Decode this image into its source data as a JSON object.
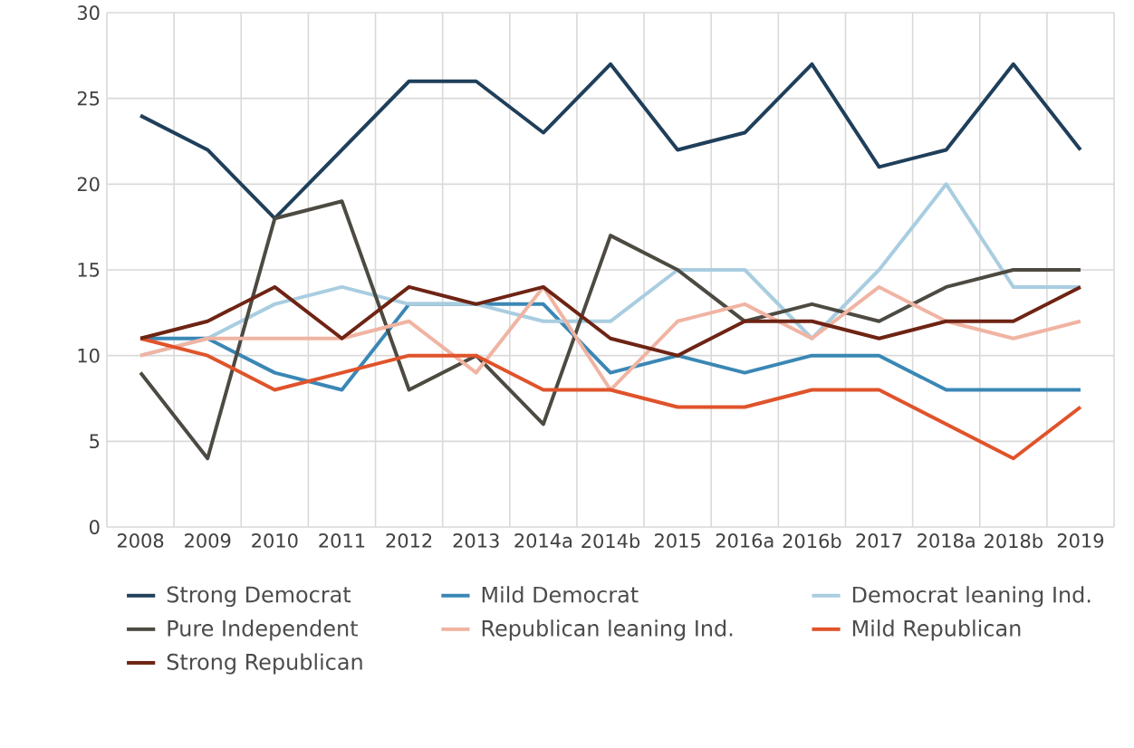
{
  "chart_data": {
    "type": "line",
    "categories": [
      "2008",
      "2009",
      "2010",
      "2011",
      "2012",
      "2013",
      "2014a",
      "2014b",
      "2015",
      "2016a",
      "2016b",
      "2017",
      "2018a",
      "2018b",
      "2019"
    ],
    "series": [
      {
        "name": "Strong Democrat",
        "color": "#1f3f5a",
        "values": [
          24,
          22,
          18,
          22,
          26,
          26,
          23,
          27,
          22,
          23,
          27,
          21,
          22,
          27,
          22
        ]
      },
      {
        "name": "Mild Democrat",
        "color": "#3a87b5",
        "values": [
          11,
          11,
          9,
          8,
          13,
          13,
          13,
          9,
          10,
          9,
          10,
          10,
          8,
          8,
          8
        ]
      },
      {
        "name": "Democrat leaning Ind.",
        "color": "#a9cde0",
        "values": [
          10,
          11,
          13,
          14,
          13,
          13,
          12,
          12,
          15,
          15,
          11,
          15,
          20,
          14,
          14
        ]
      },
      {
        "name": "Pure Independent",
        "color": "#4d4a42",
        "values": [
          9,
          4,
          18,
          19,
          8,
          10,
          6,
          17,
          15,
          12,
          13,
          12,
          14,
          15,
          15
        ]
      },
      {
        "name": "Republican leaning Ind.",
        "color": "#f0b4a3",
        "values": [
          10,
          11,
          11,
          11,
          12,
          9,
          14,
          8,
          12,
          13,
          11,
          14,
          12,
          11,
          12
        ]
      },
      {
        "name": "Mild Republican",
        "color": "#e0532b",
        "values": [
          11,
          10,
          8,
          9,
          10,
          10,
          8,
          8,
          7,
          7,
          8,
          8,
          6,
          4,
          7
        ]
      },
      {
        "name": "Strong Republican",
        "color": "#6e2414",
        "values": [
          11,
          12,
          14,
          11,
          14,
          13,
          14,
          11,
          10,
          12,
          12,
          11,
          12,
          12,
          14
        ]
      }
    ],
    "ylim": [
      0,
      30
    ],
    "yticks": [
      0,
      5,
      10,
      15,
      20,
      25,
      30
    ],
    "grid": true,
    "legend": "bottom",
    "marker": "none",
    "line_style": "solid"
  }
}
